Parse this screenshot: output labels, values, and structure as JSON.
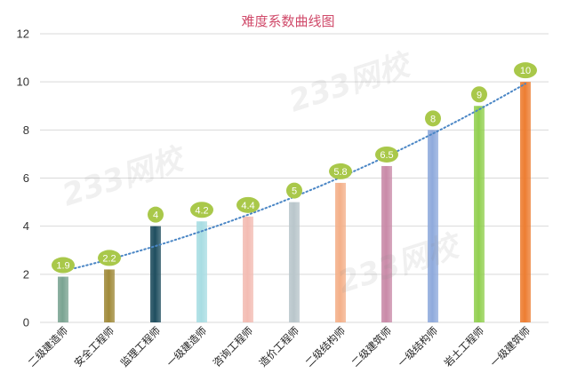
{
  "chart_data": {
    "type": "bar",
    "title": "难度系数曲线图",
    "categories": [
      "二级建造师",
      "安全工程师",
      "监理工程师",
      "一级建造师",
      "咨询工程师",
      "造价工程师",
      "二级结构师",
      "二级建筑师",
      "一级结构师",
      "岩土工程师",
      "一级建筑师"
    ],
    "values": [
      1.9,
      2.2,
      4,
      4.2,
      4.4,
      5,
      5.8,
      6.5,
      8,
      9,
      10
    ],
    "value_labels": [
      "1.9",
      "2.2",
      "4",
      "4.2",
      "4.4",
      "5",
      "5.8",
      "6.5",
      "8",
      "9",
      "10"
    ],
    "bar_colors": [
      "#7aa391",
      "#a08a3a",
      "#1f4e5f",
      "#a8dde3",
      "#f3bcb3",
      "#b9c6cb",
      "#f4b089",
      "#c98aa8",
      "#8faadc",
      "#92d050",
      "#ed7d31"
    ],
    "ylim": [
      0,
      12
    ],
    "yticks": [
      "0",
      "2",
      "4",
      "6",
      "8",
      "10",
      "12"
    ],
    "ytick_values": [
      0,
      2,
      4,
      6,
      8,
      10,
      12
    ],
    "xlabel": "",
    "ylabel": "",
    "grid": true,
    "trendline": {
      "type": "polynomial",
      "style": "dotted",
      "color": "#4a86c5"
    },
    "label_bubble_color": "#a9c84a",
    "watermark": "233网校"
  }
}
